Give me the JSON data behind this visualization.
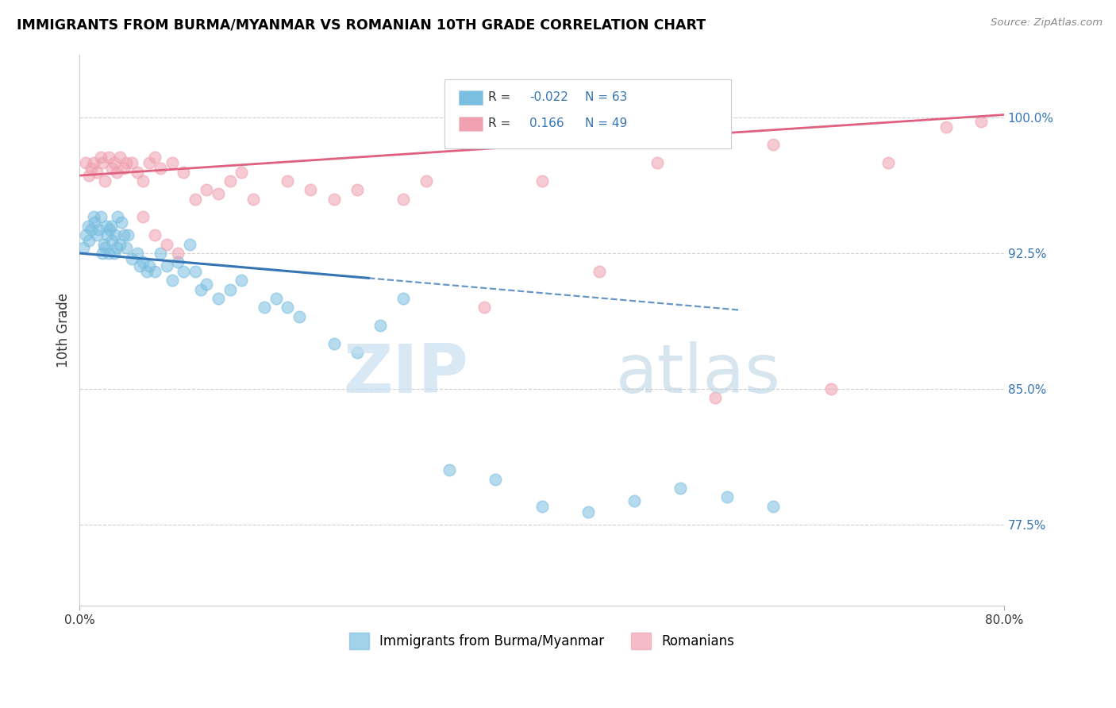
{
  "title": "IMMIGRANTS FROM BURMA/MYANMAR VS ROMANIAN 10TH GRADE CORRELATION CHART",
  "source": "Source: ZipAtlas.com",
  "ylabel": "10th Grade",
  "y_ticks": [
    77.5,
    85.0,
    92.5,
    100.0
  ],
  "y_tick_labels": [
    "77.5%",
    "85.0%",
    "92.5%",
    "100.0%"
  ],
  "xlim": [
    0.0,
    80.0
  ],
  "ylim": [
    73.0,
    103.5
  ],
  "blue_R": -0.022,
  "blue_N": 63,
  "pink_R": 0.166,
  "pink_N": 49,
  "blue_color": "#7bbfe0",
  "pink_color": "#f0a0b0",
  "blue_line_color": "#3575b5",
  "pink_line_color": "#e06080",
  "blue_line_solid_end": 25.0,
  "blue_line_dash_end": 57.0,
  "legend_label_blue": "Immigrants from Burma/Myanmar",
  "legend_label_pink": "Romanians",
  "blue_line_intercept": 92.5,
  "blue_line_slope": -0.055,
  "pink_line_intercept": 96.8,
  "pink_line_slope": 0.042,
  "blue_x": [
    0.3,
    0.5,
    0.7,
    0.8,
    1.0,
    1.2,
    1.3,
    1.5,
    1.6,
    1.8,
    2.0,
    2.1,
    2.2,
    2.3,
    2.4,
    2.5,
    2.6,
    2.7,
    2.8,
    3.0,
    3.1,
    3.2,
    3.3,
    3.5,
    3.6,
    3.8,
    4.0,
    4.2,
    4.5,
    5.0,
    5.2,
    5.5,
    5.8,
    6.0,
    6.5,
    7.0,
    7.5,
    8.0,
    8.5,
    9.0,
    9.5,
    10.0,
    10.5,
    11.0,
    12.0,
    13.0,
    14.0,
    16.0,
    17.0,
    18.0,
    19.0,
    22.0,
    24.0,
    26.0,
    28.0,
    32.0,
    36.0,
    40.0,
    44.0,
    48.0,
    52.0,
    56.0,
    60.0
  ],
  "blue_y": [
    92.8,
    93.5,
    94.0,
    93.2,
    93.8,
    94.5,
    94.2,
    93.5,
    93.8,
    94.5,
    92.5,
    93.0,
    92.8,
    94.0,
    93.5,
    92.5,
    93.8,
    94.0,
    93.2,
    92.5,
    93.5,
    92.8,
    94.5,
    93.0,
    94.2,
    93.5,
    92.8,
    93.5,
    92.2,
    92.5,
    91.8,
    92.0,
    91.5,
    91.8,
    91.5,
    92.5,
    91.8,
    91.0,
    92.0,
    91.5,
    93.0,
    91.5,
    90.5,
    90.8,
    90.0,
    90.5,
    91.0,
    89.5,
    90.0,
    89.5,
    89.0,
    87.5,
    87.0,
    88.5,
    90.0,
    80.5,
    80.0,
    78.5,
    78.2,
    78.8,
    79.5,
    79.0,
    78.5
  ],
  "pink_x": [
    0.5,
    0.8,
    1.0,
    1.2,
    1.5,
    1.8,
    2.0,
    2.2,
    2.5,
    2.8,
    3.0,
    3.2,
    3.5,
    3.8,
    4.0,
    4.5,
    5.0,
    5.5,
    6.0,
    6.5,
    7.0,
    8.0,
    9.0,
    10.0,
    11.0,
    12.0,
    13.0,
    14.0,
    15.0,
    18.0,
    20.0,
    22.0,
    24.0,
    28.0,
    30.0,
    35.0,
    40.0,
    45.0,
    50.0,
    55.0,
    60.0,
    65.0,
    70.0,
    75.0,
    78.0,
    5.5,
    6.5,
    7.5,
    8.5
  ],
  "pink_y": [
    97.5,
    96.8,
    97.2,
    97.5,
    97.0,
    97.8,
    97.5,
    96.5,
    97.8,
    97.2,
    97.5,
    97.0,
    97.8,
    97.2,
    97.5,
    97.5,
    97.0,
    96.5,
    97.5,
    97.8,
    97.2,
    97.5,
    97.0,
    95.5,
    96.0,
    95.8,
    96.5,
    97.0,
    95.5,
    96.5,
    96.0,
    95.5,
    96.0,
    95.5,
    96.5,
    89.5,
    96.5,
    91.5,
    97.5,
    84.5,
    98.5,
    85.0,
    97.5,
    99.5,
    99.8,
    94.5,
    93.5,
    93.0,
    92.5
  ]
}
